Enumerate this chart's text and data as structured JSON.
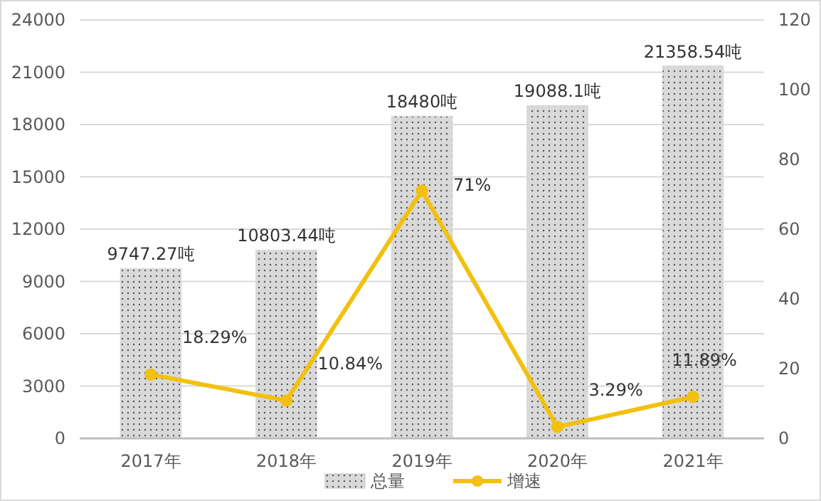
{
  "chart_data": {
    "type": "bar",
    "categories": [
      "2017年",
      "2018年",
      "2019年",
      "2020年",
      "2021年"
    ],
    "series": [
      {
        "name": "总量",
        "color": "#d9d9d9",
        "values": [
          9747.27,
          10803.44,
          18480,
          19088.1,
          21358.54
        ],
        "value_labels": [
          "9747.27吨",
          "10803.44吨",
          "18480吨",
          "19088.1吨",
          "21358.54吨"
        ]
      },
      {
        "name": "增速",
        "type": "line",
        "axis": "y2",
        "color": "#f2c00f",
        "marker": "circle",
        "values": [
          18.29,
          10.84,
          71,
          3.29,
          11.89
        ],
        "value_labels": [
          "18.29%",
          "10.84%",
          "71%",
          "3.29%",
          "11.89%"
        ]
      }
    ],
    "ylim": [
      0,
      24000
    ],
    "yticks": [
      0,
      3000,
      6000,
      9000,
      12000,
      15000,
      18000,
      21000,
      24000
    ],
    "y2lim": [
      0,
      120
    ],
    "y2ticks": [
      0,
      20,
      40,
      60,
      80,
      100,
      120
    ],
    "grid": "y",
    "legend": "bottom"
  }
}
